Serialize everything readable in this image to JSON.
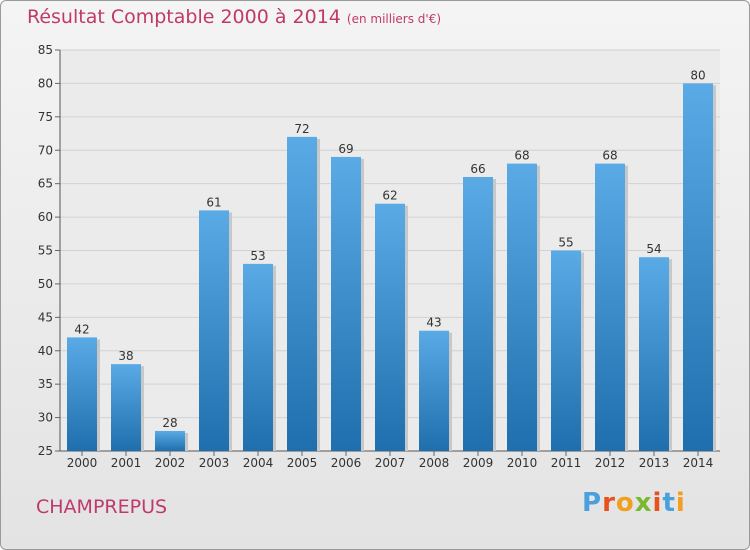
{
  "chart_data": {
    "type": "bar",
    "title": "Résultat Comptable 2000 à 2014",
    "subtitle": "(en milliers d'€)",
    "categories": [
      "2000",
      "2001",
      "2002",
      "2003",
      "2004",
      "2005",
      "2006",
      "2007",
      "2008",
      "2009",
      "2010",
      "2011",
      "2012",
      "2013",
      "2014"
    ],
    "values": [
      42,
      38,
      28,
      61,
      53,
      72,
      69,
      62,
      43,
      66,
      68,
      55,
      68,
      54,
      80
    ],
    "ylim": [
      25,
      85
    ],
    "yticks": [
      25,
      30,
      35,
      40,
      45,
      50,
      55,
      60,
      65,
      70,
      75,
      80,
      85
    ],
    "xlabel": "",
    "ylabel": "",
    "grid": true,
    "colors": {
      "bar_light": "#5aaae6",
      "bar_dark": "#1f6fae",
      "title": "#c0396b"
    }
  },
  "footer": {
    "commune": "CHAMPREPUS",
    "logo": [
      "P",
      "r",
      "o",
      "x",
      "i",
      "t",
      "i"
    ],
    "logo_colors": [
      "#4aa0dc",
      "#e8501e",
      "#f0a01e",
      "#7ab830",
      "#e8501e",
      "#4aa0dc",
      "#f0a01e"
    ]
  }
}
